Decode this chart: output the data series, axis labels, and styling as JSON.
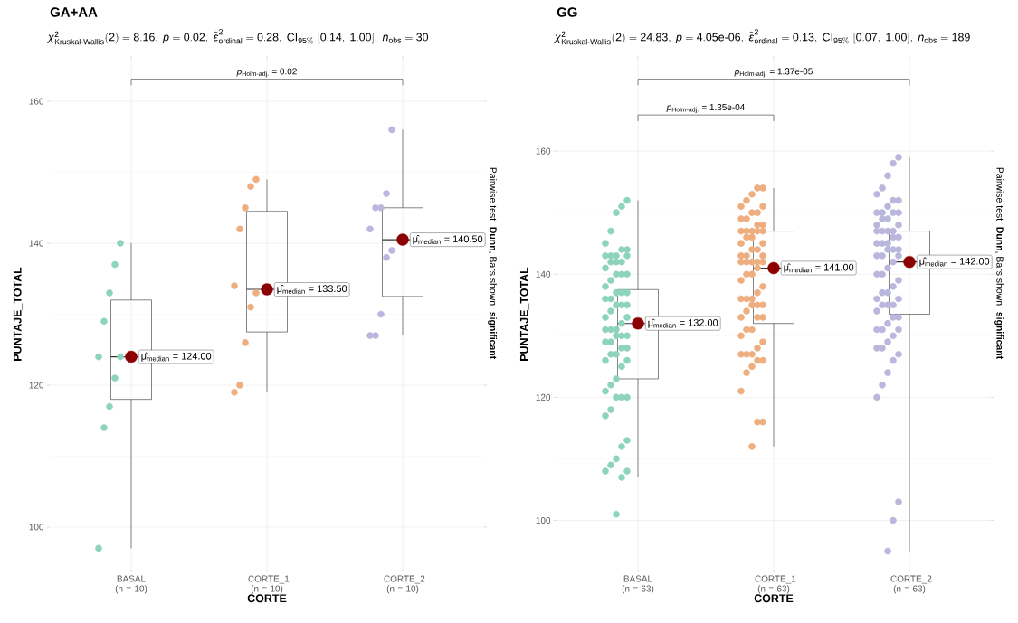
{
  "chart_data": [
    {
      "type": "box",
      "title": "GA+AA",
      "subtitle": "\\chi^{2}_{\\text{Kruskal-Wallis}}(2) = 8.16,\\ p = 0.02,\\ \\widehat{\\epsilon}^{2}_{\\text{ordinal}} = 0.28,\\ \\text{CI}_{95\\%}\\ [0.14,\\ 1.00],\\ n_{\\text{obs}} = 30",
      "xlabel": "CORTE",
      "ylabel": "PUNTAJE_TOTAL",
      "categories": [
        "BASAL (n = 10)",
        "CORTE_1 (n = 10)",
        "CORTE_2 (n = 10)"
      ],
      "boxes": [
        {
          "low": 97,
          "q1": 118,
          "median": 124,
          "q3": 132,
          "high": 140
        },
        {
          "low": 119,
          "q1": 127.5,
          "median": 133.5,
          "q3": 144.5,
          "high": 149
        },
        {
          "low": 127,
          "q1": 132.5,
          "median": 140.5,
          "q3": 145,
          "high": 156
        }
      ],
      "series": [
        {
          "type": "scatter",
          "color": "#8ed3bd",
          "x": [
            "BASAL (n = 10)",
            "BASAL (n = 10)",
            "BASAL (n = 10)",
            "BASAL (n = 10)",
            "BASAL (n = 10)",
            "BASAL (n = 10)",
            "BASAL (n = 10)",
            "BASAL (n = 10)",
            "BASAL (n = 10)",
            "BASAL (n = 10)"
          ],
          "values": [
            140,
            137,
            133,
            129,
            124,
            124,
            121,
            117,
            114,
            97
          ]
        },
        {
          "type": "scatter",
          "color": "#efae80",
          "x": [
            "CORTE_1 (n = 10)",
            "CORTE_1 (n = 10)",
            "CORTE_1 (n = 10)",
            "CORTE_1 (n = 10)",
            "CORTE_1 (n = 10)",
            "CORTE_1 (n = 10)",
            "CORTE_1 (n = 10)",
            "CORTE_1 (n = 10)",
            "CORTE_1 (n = 10)",
            "CORTE_1 (n = 10)"
          ],
          "values": [
            149,
            148,
            145,
            142,
            134,
            133,
            131,
            126,
            120,
            119
          ]
        },
        {
          "type": "scatter",
          "color": "#bab7dd",
          "x": [
            "CORTE_2 (n = 10)",
            "CORTE_2 (n = 10)",
            "CORTE_2 (n = 10)",
            "CORTE_2 (n = 10)",
            "CORTE_2 (n = 10)",
            "CORTE_2 (n = 10)",
            "CORTE_2 (n = 10)",
            "CORTE_2 (n = 10)",
            "CORTE_2 (n = 10)",
            "CORTE_2 (n = 10)"
          ],
          "values": [
            156,
            147,
            145,
            145,
            142,
            139,
            138,
            130,
            127,
            127
          ]
        },
        {
          "type": "scatter",
          "color": "#8b0000",
          "x": [
            "BASAL (n = 10)",
            "CORTE_1 (n = 10)",
            "CORTE_2 (n = 10)"
          ],
          "values": [
            124,
            133.5,
            140.5
          ],
          "value_labels": [
            "μ̂$_{median}$ = 124.00",
            "μ̂$_{median}$ = 133.50",
            "μ̂$_{median}$ = 140.50"
          ]
        }
      ],
      "marker": "circle",
      "ylim": [
        94,
        166
      ],
      "yticks": [
        100,
        120,
        140,
        160
      ],
      "grid": true,
      "annotations": [
        "*p*$_{Holm-adj.}$ = 0.02",
        "Pairwise test: **Dunn**, Bars shown: **significant**"
      ]
    },
    {
      "type": "box",
      "title": "GG",
      "subtitle": "\\chi^{2}_{\\text{Kruskal-Wallis}}(2) = 24.83,\\ p = 4.05\\text{e-}06,\\ \\widehat{\\epsilon}^{2}_{\\text{ordinal}} = 0.13,\\ \\text{CI}_{95\\%}\\ [0.07,\\ 1.00],\\ n_{\\text{obs}} = 189",
      "xlabel": "CORTE",
      "ylabel": "PUNTAJE_TOTAL",
      "categories": [
        "BASAL (n = 63)",
        "CORTE_1 (n = 63)",
        "CORTE_2 (n = 63)"
      ],
      "boxes": [
        {
          "low": 107,
          "q1": 123,
          "median": 132,
          "q3": 137.5,
          "high": 152
        },
        {
          "low": 112,
          "q1": 132,
          "median": 141,
          "q3": 147,
          "high": 154
        },
        {
          "low": 95,
          "q1": 133.5,
          "median": 142,
          "q3": 147,
          "high": 159
        }
      ],
      "series": [
        {
          "type": "scatter",
          "color": "#8ed3bd",
          "x": [
            "BASAL (n = 63)",
            "BASAL (n = 63)",
            "BASAL (n = 63)",
            "BASAL (n = 63)",
            "BASAL (n = 63)",
            "BASAL (n = 63)",
            "BASAL (n = 63)",
            "BASAL (n = 63)",
            "BASAL (n = 63)",
            "BASAL (n = 63)",
            "BASAL (n = 63)",
            "BASAL (n = 63)",
            "BASAL (n = 63)",
            "BASAL (n = 63)",
            "BASAL (n = 63)",
            "BASAL (n = 63)",
            "BASAL (n = 63)",
            "BASAL (n = 63)",
            "BASAL (n = 63)",
            "BASAL (n = 63)",
            "BASAL (n = 63)",
            "BASAL (n = 63)",
            "BASAL (n = 63)",
            "BASAL (n = 63)",
            "BASAL (n = 63)",
            "BASAL (n = 63)",
            "BASAL (n = 63)",
            "BASAL (n = 63)",
            "BASAL (n = 63)",
            "BASAL (n = 63)",
            "BASAL (n = 63)",
            "BASAL (n = 63)",
            "BASAL (n = 63)",
            "BASAL (n = 63)",
            "BASAL (n = 63)",
            "BASAL (n = 63)",
            "BASAL (n = 63)",
            "BASAL (n = 63)",
            "BASAL (n = 63)",
            "BASAL (n = 63)",
            "BASAL (n = 63)",
            "BASAL (n = 63)",
            "BASAL (n = 63)",
            "BASAL (n = 63)",
            "BASAL (n = 63)",
            "BASAL (n = 63)",
            "BASAL (n = 63)",
            "BASAL (n = 63)",
            "BASAL (n = 63)",
            "BASAL (n = 63)",
            "BASAL (n = 63)",
            "BASAL (n = 63)",
            "BASAL (n = 63)",
            "BASAL (n = 63)",
            "BASAL (n = 63)",
            "BASAL (n = 63)",
            "BASAL (n = 63)",
            "BASAL (n = 63)",
            "BASAL (n = 63)",
            "BASAL (n = 63)",
            "BASAL (n = 63)",
            "BASAL (n = 63)",
            "BASAL (n = 63)"
          ],
          "values": [
            152,
            151,
            150,
            147,
            145,
            144,
            144,
            143,
            143,
            143,
            143,
            142,
            142,
            142,
            141,
            140,
            140,
            140,
            139,
            138,
            137,
            137,
            137,
            136,
            136,
            135,
            135,
            135,
            134,
            133,
            133,
            132,
            131,
            131,
            131,
            130,
            130,
            130,
            129,
            129,
            128,
            128,
            127,
            127,
            126,
            126,
            125,
            123,
            122,
            121,
            120,
            120,
            120,
            118,
            117,
            113,
            112,
            110,
            109,
            108,
            108,
            107,
            101
          ]
        },
        {
          "type": "scatter",
          "color": "#efae80",
          "x": [
            "CORTE_1 (n = 63)",
            "CORTE_1 (n = 63)",
            "CORTE_1 (n = 63)",
            "CORTE_1 (n = 63)",
            "CORTE_1 (n = 63)",
            "CORTE_1 (n = 63)",
            "CORTE_1 (n = 63)",
            "CORTE_1 (n = 63)",
            "CORTE_1 (n = 63)",
            "CORTE_1 (n = 63)",
            "CORTE_1 (n = 63)",
            "CORTE_1 (n = 63)",
            "CORTE_1 (n = 63)",
            "CORTE_1 (n = 63)",
            "CORTE_1 (n = 63)",
            "CORTE_1 (n = 63)",
            "CORTE_1 (n = 63)",
            "CORTE_1 (n = 63)",
            "CORTE_1 (n = 63)",
            "CORTE_1 (n = 63)",
            "CORTE_1 (n = 63)",
            "CORTE_1 (n = 63)",
            "CORTE_1 (n = 63)",
            "CORTE_1 (n = 63)",
            "CORTE_1 (n = 63)",
            "CORTE_1 (n = 63)",
            "CORTE_1 (n = 63)",
            "CORTE_1 (n = 63)",
            "CORTE_1 (n = 63)",
            "CORTE_1 (n = 63)",
            "CORTE_1 (n = 63)",
            "CORTE_1 (n = 63)",
            "CORTE_1 (n = 63)",
            "CORTE_1 (n = 63)",
            "CORTE_1 (n = 63)",
            "CORTE_1 (n = 63)",
            "CORTE_1 (n = 63)",
            "CORTE_1 (n = 63)",
            "CORTE_1 (n = 63)",
            "CORTE_1 (n = 63)",
            "CORTE_1 (n = 63)",
            "CORTE_1 (n = 63)",
            "CORTE_1 (n = 63)",
            "CORTE_1 (n = 63)",
            "CORTE_1 (n = 63)",
            "CORTE_1 (n = 63)",
            "CORTE_1 (n = 63)",
            "CORTE_1 (n = 63)",
            "CORTE_1 (n = 63)",
            "CORTE_1 (n = 63)",
            "CORTE_1 (n = 63)",
            "CORTE_1 (n = 63)",
            "CORTE_1 (n = 63)",
            "CORTE_1 (n = 63)",
            "CORTE_1 (n = 63)",
            "CORTE_1 (n = 63)",
            "CORTE_1 (n = 63)",
            "CORTE_1 (n = 63)",
            "CORTE_1 (n = 63)",
            "CORTE_1 (n = 63)",
            "CORTE_1 (n = 63)",
            "CORTE_1 (n = 63)",
            "CORTE_1 (n = 63)"
          ],
          "values": [
            154,
            154,
            153,
            152,
            151,
            151,
            150,
            150,
            149,
            149,
            148,
            148,
            147,
            147,
            147,
            147,
            147,
            146,
            146,
            145,
            145,
            144,
            144,
            143,
            143,
            143,
            142,
            142,
            142,
            142,
            142,
            141,
            140,
            140,
            139,
            138,
            137,
            136,
            136,
            136,
            135,
            135,
            135,
            134,
            133,
            133,
            133,
            131,
            131,
            130,
            129,
            128,
            127,
            127,
            127,
            126,
            126,
            125,
            124,
            121,
            116,
            116,
            112
          ]
        },
        {
          "type": "scatter",
          "color": "#bab7dd",
          "x": [
            "CORTE_2 (n = 63)",
            "CORTE_2 (n = 63)",
            "CORTE_2 (n = 63)",
            "CORTE_2 (n = 63)",
            "CORTE_2 (n = 63)",
            "CORTE_2 (n = 63)",
            "CORTE_2 (n = 63)",
            "CORTE_2 (n = 63)",
            "CORTE_2 (n = 63)",
            "CORTE_2 (n = 63)",
            "CORTE_2 (n = 63)",
            "CORTE_2 (n = 63)",
            "CORTE_2 (n = 63)",
            "CORTE_2 (n = 63)",
            "CORTE_2 (n = 63)",
            "CORTE_2 (n = 63)",
            "CORTE_2 (n = 63)",
            "CORTE_2 (n = 63)",
            "CORTE_2 (n = 63)",
            "CORTE_2 (n = 63)",
            "CORTE_2 (n = 63)",
            "CORTE_2 (n = 63)",
            "CORTE_2 (n = 63)",
            "CORTE_2 (n = 63)",
            "CORTE_2 (n = 63)",
            "CORTE_2 (n = 63)",
            "CORTE_2 (n = 63)",
            "CORTE_2 (n = 63)",
            "CORTE_2 (n = 63)",
            "CORTE_2 (n = 63)",
            "CORTE_2 (n = 63)",
            "CORTE_2 (n = 63)",
            "CORTE_2 (n = 63)",
            "CORTE_2 (n = 63)",
            "CORTE_2 (n = 63)",
            "CORTE_2 (n = 63)",
            "CORTE_2 (n = 63)",
            "CORTE_2 (n = 63)",
            "CORTE_2 (n = 63)",
            "CORTE_2 (n = 63)",
            "CORTE_2 (n = 63)",
            "CORTE_2 (n = 63)",
            "CORTE_2 (n = 63)",
            "CORTE_2 (n = 63)",
            "CORTE_2 (n = 63)",
            "CORTE_2 (n = 63)",
            "CORTE_2 (n = 63)",
            "CORTE_2 (n = 63)",
            "CORTE_2 (n = 63)",
            "CORTE_2 (n = 63)",
            "CORTE_2 (n = 63)",
            "CORTE_2 (n = 63)",
            "CORTE_2 (n = 63)",
            "CORTE_2 (n = 63)",
            "CORTE_2 (n = 63)",
            "CORTE_2 (n = 63)",
            "CORTE_2 (n = 63)",
            "CORTE_2 (n = 63)",
            "CORTE_2 (n = 63)",
            "CORTE_2 (n = 63)",
            "CORTE_2 (n = 63)",
            "CORTE_2 (n = 63)",
            "CORTE_2 (n = 63)"
          ],
          "values": [
            159,
            158,
            156,
            154,
            153,
            152,
            152,
            151,
            150,
            150,
            150,
            150,
            149,
            149,
            148,
            148,
            147,
            147,
            147,
            147,
            146,
            146,
            145,
            145,
            145,
            144,
            144,
            144,
            143,
            143,
            143,
            142,
            141,
            140,
            140,
            139,
            138,
            137,
            137,
            136,
            136,
            135,
            135,
            135,
            134,
            133,
            133,
            132,
            131,
            131,
            131,
            130,
            129,
            128,
            128,
            127,
            126,
            124,
            122,
            120,
            103,
            100,
            95
          ]
        },
        {
          "type": "scatter",
          "color": "#8b0000",
          "x": [
            "BASAL (n = 63)",
            "CORTE_1 (n = 63)",
            "CORTE_2 (n = 63)"
          ],
          "values": [
            132,
            141,
            142
          ],
          "value_labels": [
            "μ̂$_{median}$ = 132.00",
            "μ̂$_{median}$ = 141.00",
            "μ̂$_{median}$ = 142.00"
          ]
        }
      ],
      "marker": "circle",
      "ylim": [
        92,
        175
      ],
      "yticks": [
        100,
        120,
        140,
        160
      ],
      "grid": true,
      "annotations": [
        "*p*$_{Holm-adj.}$ = 1.37e-05",
        "*p*$_{Holm-adj.}$ = 1.35e-04",
        "Pairwise test: **Dunn**, Bars shown: **significant**"
      ]
    }
  ]
}
